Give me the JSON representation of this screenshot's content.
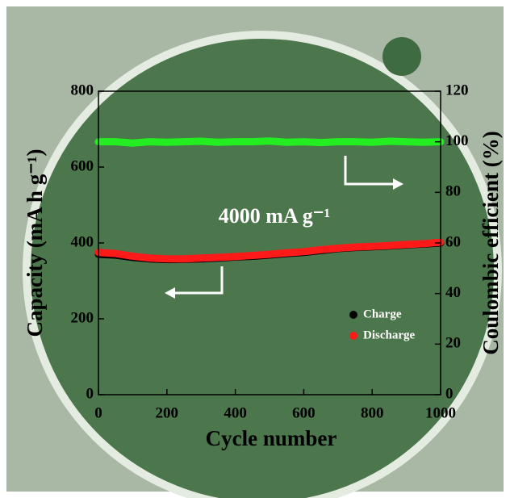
{
  "chart_data": {
    "type": "line",
    "annotation": "4000 mA g⁻¹",
    "xlabel": "Cycle number",
    "ylabel": "Capacity (mA h g⁻¹)",
    "y2label": "Coulombic efficient (%)",
    "x": [
      0,
      50,
      100,
      150,
      200,
      250,
      300,
      350,
      400,
      450,
      500,
      550,
      600,
      650,
      700,
      750,
      800,
      850,
      900,
      950,
      1000
    ],
    "series": [
      {
        "name": "Charge",
        "color": "#000000",
        "values": [
          370,
          368,
          362,
          358,
          356,
          357,
          358,
          360,
          363,
          365,
          368,
          372,
          375,
          380,
          385,
          388,
          390,
          392,
          395,
          397,
          400
        ]
      },
      {
        "name": "Discharge",
        "color": "#ff1a1a",
        "values": [
          375,
          372,
          365,
          360,
          358,
          358,
          360,
          362,
          364,
          367,
          370,
          374,
          377,
          382,
          386,
          389,
          391,
          393,
          396,
          398,
          402
        ]
      },
      {
        "color": "#22ee22",
        "axis": "y2",
        "values": [
          100,
          100,
          99.5,
          100,
          99.8,
          100,
          100.2,
          99.8,
          100,
          100,
          100.3,
          99.8,
          100,
          99.7,
          100,
          100,
          99.8,
          100.2,
          100,
          99.8,
          100
        ]
      }
    ],
    "xlim": [
      0,
      1000
    ],
    "xticks": [
      0,
      200,
      400,
      600,
      800,
      1000
    ],
    "ylim": [
      0,
      800
    ],
    "yticks": [
      0,
      200,
      400,
      600,
      800
    ],
    "y2lim": [
      0,
      120
    ],
    "y2ticks": [
      0,
      20,
      40,
      60,
      80,
      100,
      120
    ]
  }
}
